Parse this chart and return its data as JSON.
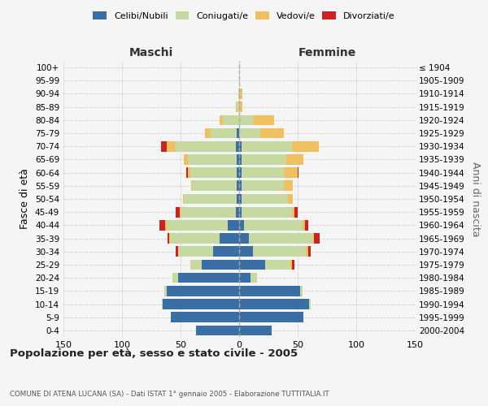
{
  "age_groups": [
    "0-4",
    "5-9",
    "10-14",
    "15-19",
    "20-24",
    "25-29",
    "30-34",
    "35-39",
    "40-44",
    "45-49",
    "50-54",
    "55-59",
    "60-64",
    "65-69",
    "70-74",
    "75-79",
    "80-84",
    "85-89",
    "90-94",
    "95-99",
    "100+"
  ],
  "birth_years": [
    "2000-2004",
    "1995-1999",
    "1990-1994",
    "1985-1989",
    "1980-1984",
    "1975-1979",
    "1970-1974",
    "1965-1969",
    "1960-1964",
    "1955-1959",
    "1950-1954",
    "1945-1949",
    "1940-1944",
    "1935-1939",
    "1930-1934",
    "1925-1929",
    "1920-1924",
    "1915-1919",
    "1910-1914",
    "1905-1909",
    "≤ 1904"
  ],
  "maschi": {
    "celibi": [
      37,
      58,
      65,
      62,
      52,
      32,
      22,
      17,
      10,
      3,
      2,
      2,
      2,
      2,
      3,
      2,
      0,
      0,
      0,
      0,
      0
    ],
    "coniugati": [
      0,
      0,
      1,
      2,
      5,
      10,
      30,
      42,
      52,
      47,
      45,
      38,
      40,
      42,
      52,
      22,
      14,
      2,
      1,
      0,
      0
    ],
    "vedovi": [
      0,
      0,
      0,
      0,
      0,
      0,
      0,
      1,
      1,
      1,
      1,
      1,
      2,
      3,
      7,
      5,
      3,
      1,
      0,
      0,
      0
    ],
    "divorziati": [
      0,
      0,
      0,
      0,
      0,
      0,
      2,
      1,
      5,
      3,
      0,
      0,
      1,
      0,
      5,
      0,
      0,
      0,
      0,
      0,
      0
    ]
  },
  "femmine": {
    "nubili": [
      28,
      55,
      60,
      52,
      10,
      22,
      12,
      8,
      4,
      2,
      2,
      2,
      2,
      2,
      2,
      0,
      0,
      0,
      0,
      0,
      0
    ],
    "coniugate": [
      0,
      0,
      1,
      2,
      5,
      22,
      45,
      55,
      50,
      43,
      40,
      36,
      36,
      38,
      43,
      18,
      12,
      1,
      1,
      0,
      0
    ],
    "vedove": [
      0,
      0,
      0,
      0,
      0,
      1,
      2,
      1,
      2,
      2,
      4,
      8,
      12,
      15,
      23,
      20,
      18,
      2,
      2,
      1,
      0
    ],
    "divorziate": [
      0,
      0,
      0,
      0,
      0,
      2,
      2,
      5,
      3,
      3,
      0,
      0,
      1,
      0,
      0,
      0,
      0,
      0,
      0,
      0,
      0
    ]
  },
  "colors": {
    "celibi": "#3a6fa5",
    "coniugati": "#c5d9a0",
    "vedovi": "#f0c060",
    "divorziati": "#cc2222"
  },
  "xlim": [
    -150,
    150
  ],
  "xticks": [
    -150,
    -100,
    -50,
    0,
    50,
    100,
    150
  ],
  "xticklabels": [
    "150",
    "100",
    "50",
    "0",
    "50",
    "100",
    "150"
  ],
  "title": "Popolazione per età, sesso e stato civile - 2005",
  "subtitle": "COMUNE DI ATENA LUCANA (SA) - Dati ISTAT 1° gennaio 2005 - Elaborazione TUTTITALIA.IT",
  "ylabel_left": "Fasce di età",
  "ylabel_right": "Anni di nascita",
  "label_maschi": "Maschi",
  "label_femmine": "Femmine",
  "legend_labels": [
    "Celibi/Nubili",
    "Coniugati/e",
    "Vedovi/e",
    "Divorziati/e"
  ],
  "bg_color": "#f5f5f5",
  "grid_color": "#cccccc",
  "maschi_color": "#333333",
  "femmine_color": "#333333"
}
